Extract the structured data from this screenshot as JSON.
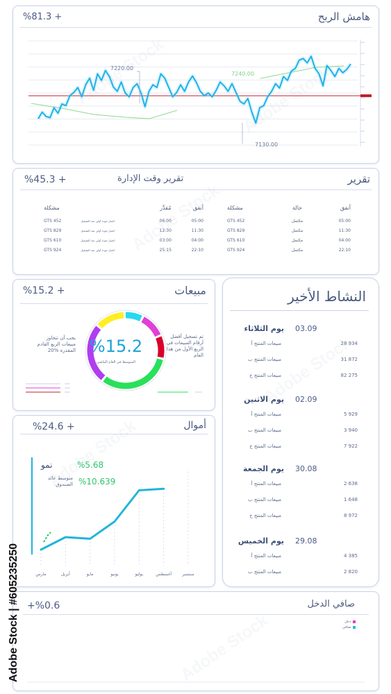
{
  "profit": {
    "title": "هامش الربح",
    "value": "%81.3 +",
    "annotations": [
      "7220.00",
      "7240.00",
      "7130.00"
    ],
    "chart_data": {
      "type": "line",
      "ylim": [
        7100,
        7290
      ],
      "reference_line": 7190,
      "x": [
        1,
        2,
        3,
        4,
        5,
        6,
        7,
        8,
        9,
        10,
        11,
        12,
        13,
        14,
        15,
        16,
        17,
        18,
        19,
        20,
        21,
        22,
        23,
        24,
        25,
        26,
        27,
        28,
        29,
        30,
        31,
        32,
        33,
        34,
        35,
        36,
        37,
        38,
        39,
        40,
        41,
        42,
        43,
        44,
        45,
        46,
        47,
        48,
        49,
        50,
        51,
        52,
        53,
        54,
        55,
        56,
        57,
        58,
        59,
        60,
        61,
        62,
        63,
        64,
        65,
        66,
        67,
        68,
        69,
        70,
        71,
        72,
        73,
        74,
        75,
        76,
        77,
        78,
        79,
        80
      ],
      "values": [
        7148,
        7160,
        7152,
        7150,
        7168,
        7158,
        7175,
        7172,
        7190,
        7196,
        7205,
        7188,
        7210,
        7222,
        7200,
        7230,
        7218,
        7236,
        7225,
        7206,
        7198,
        7215,
        7195,
        7188,
        7205,
        7212,
        7195,
        7170,
        7198,
        7210,
        7205,
        7230,
        7222,
        7205,
        7188,
        7196,
        7210,
        7198,
        7215,
        7226,
        7214,
        7198,
        7190,
        7195,
        7188,
        7200,
        7215,
        7208,
        7198,
        7212,
        7196,
        7180,
        7175,
        7185,
        7160,
        7140,
        7168,
        7172,
        7188,
        7198,
        7212,
        7204,
        7225,
        7218,
        7235,
        7240,
        7255,
        7258,
        7250,
        7262,
        7240,
        7230,
        7208,
        7245,
        7236,
        7225,
        7240,
        7232,
        7238,
        7248
      ]
    }
  },
  "report": {
    "title": "تقرير",
    "subtitle": "تقرير وقت الإدارة",
    "value": "%45.3 +",
    "right_headers": [
      "أنفق",
      "حالة",
      "مشكلة"
    ],
    "right_rows": [
      [
        "05:00",
        "مكتمل",
        "GTS 452"
      ],
      [
        "11:30",
        "مكتمل",
        "GTS 829"
      ],
      [
        "04:00",
        "مكتمل",
        "GTS 610"
      ],
      [
        "22:10",
        "مكتمل",
        "GTS 924"
      ]
    ],
    "left_headers": [
      "أنفق",
      "مُقدَّر",
      "مشكلة"
    ],
    "left_rows": [
      [
        "05:00",
        "06:00",
        "اختبار جودة أولي عند التشغيل",
        "GTS 452"
      ],
      [
        "11:30",
        "12:30",
        "اختبار جودة أولي عند التشغيل",
        "GTS 829"
      ],
      [
        "04:00",
        "03:00",
        "اختبار جودة أولي عند التشغيل",
        "GTS 610"
      ],
      [
        "22:10",
        "25:15",
        "اختبار جودة أولي عند التشغيل",
        "GTS 924"
      ]
    ]
  },
  "sales": {
    "title": "مبيعات",
    "value": "%15.2 +",
    "center_value": "%15.2",
    "center_caption": "المتوسط في العام الماضي",
    "left_text": "يجب أن تتجاوز مبيعات الربع القادم المقدرة %20",
    "right_text": "تم تسجيل أفضل أرقام المبيعات في الربع الأول من هذا العام",
    "chart_data": {
      "type": "pie",
      "series": [
        {
          "color": "#29e05a",
          "values": [
            32
          ]
        },
        {
          "color": "#b03ef0",
          "values": [
            26
          ]
        },
        {
          "color": "#ffee22",
          "values": [
            13
          ]
        },
        {
          "color": "#27d8f0",
          "values": [
            8
          ]
        },
        {
          "color": "#e040d8",
          "values": [
            11
          ]
        },
        {
          "color": "#d8002a",
          "values": [
            10
          ]
        }
      ]
    }
  },
  "funds": {
    "title": "أموال",
    "value": "%24.6 +",
    "growth_label": "نمو",
    "growth_value": "%5.68",
    "avg_label": "متوسط عائد الصندوق",
    "avg_value": "%10.639",
    "chart_data": {
      "type": "line",
      "categories": [
        "مارس",
        "أبريل",
        "مايو",
        "يونيو",
        "يوليو",
        "أغسطس",
        "سبتمبر"
      ],
      "values": [
        1.2,
        2.0,
        1.9,
        3.0,
        5.0,
        5.1,
        null
      ],
      "ylim": [
        0,
        8
      ]
    }
  },
  "activity": {
    "title": "النشاط الأخير",
    "days": [
      {
        "day": "يوم الثلاثاء",
        "date": "03.09",
        "rows": [
          [
            "مبيعات المنتج أ",
            "28 934"
          ],
          [
            "مبيعات المنتج ب",
            "31 872"
          ],
          [
            "مبيعات المنتج ج",
            "82 275"
          ]
        ]
      },
      {
        "day": "يوم الاثنين",
        "date": "02.09",
        "rows": [
          [
            "مبيعات المنتج أ",
            "5 929"
          ],
          [
            "مبيعات المنتج ب",
            "3 940"
          ],
          [
            "مبيعات المنتج ج",
            "7 922"
          ]
        ]
      },
      {
        "day": "يوم الجمعة",
        "date": "30.08",
        "rows": [
          [
            "مبيعات المنتج أ",
            "2 638"
          ],
          [
            "مبيعات المنتج ب",
            "1 648"
          ],
          [
            "مبيعات المنتج ج",
            "8 972"
          ]
        ]
      },
      {
        "day": "يوم الخميس",
        "date": "29.08",
        "rows": [
          [
            "مبيعات المنتج أ",
            "4 385"
          ],
          [
            "مبيعات المنتج ب",
            "2 820"
          ]
        ]
      }
    ]
  },
  "income": {
    "title": "صافي الدخل",
    "value": "+%0.6",
    "legend": [
      {
        "label": "دخل",
        "color": "#e040b0"
      },
      {
        "label": "صافي",
        "color": "#27b8e8"
      }
    ]
  },
  "watermark": {
    "stock_label": "Adobe Stock | #605235250",
    "overlay_text": "Adobe Stock"
  },
  "colors": {
    "accent": "#1fb2e6",
    "border": "#c9d2e6",
    "success": "#2ec46a",
    "reference": "#c0202a"
  }
}
